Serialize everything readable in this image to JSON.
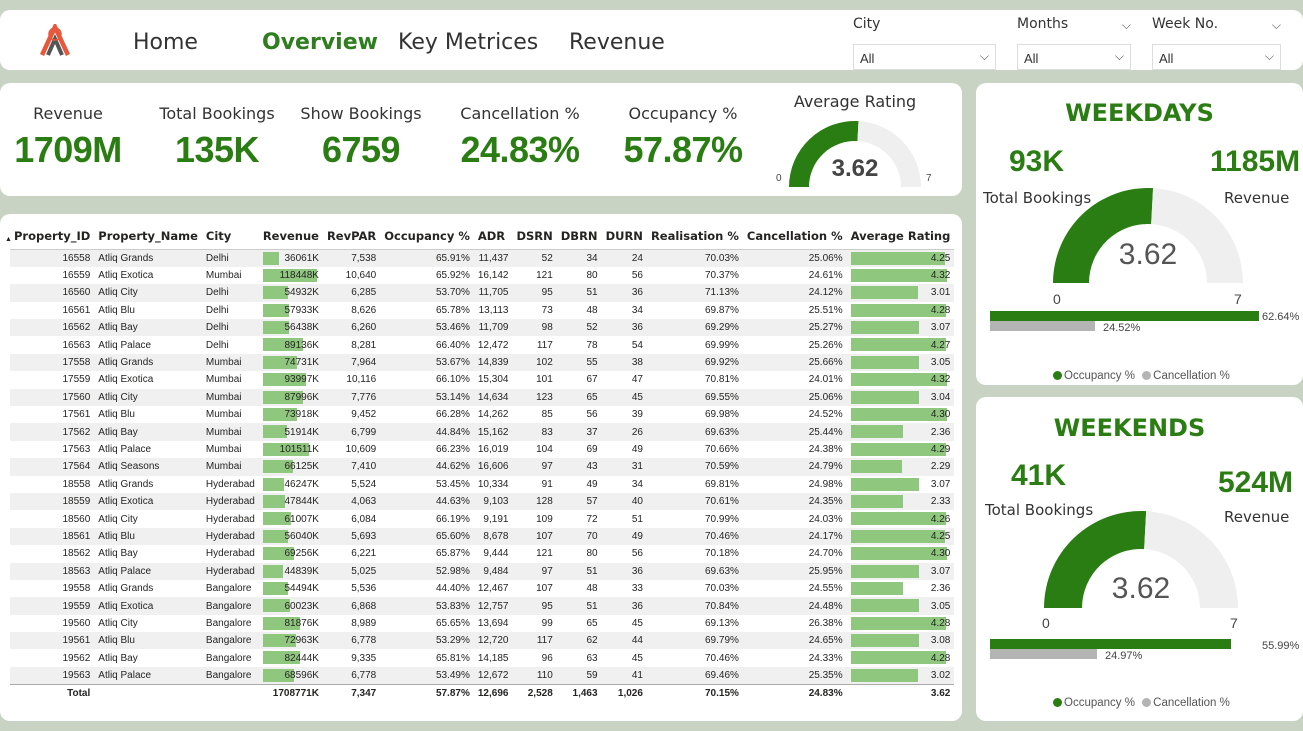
{
  "nav": {
    "items": [
      "Home",
      "Overview",
      "Key Metrices",
      "Revenue"
    ],
    "active": "Overview"
  },
  "filters": [
    {
      "label": "City",
      "value": "All"
    },
    {
      "label": "Months",
      "value": "All"
    },
    {
      "label": "Week No.",
      "value": "All"
    }
  ],
  "kpis": [
    {
      "label": "Revenue",
      "value": "1709M"
    },
    {
      "label": "Total Bookings",
      "value": "135K"
    },
    {
      "label": "Show Bookings",
      "value": "6759"
    },
    {
      "label": "Cancellation %",
      "value": "24.83%"
    },
    {
      "label": "Occupancy %",
      "value": "57.87%"
    }
  ],
  "rating_gauge": {
    "label": "Average Rating",
    "value": "3.62",
    "min": "0",
    "max": "7",
    "fraction": 0.517
  },
  "table": {
    "columns": [
      "Property_ID",
      "Property_Name",
      "City",
      "Revenue",
      "RevPAR",
      "Occupancy %",
      "ADR",
      "DSRN",
      "DBRN",
      "DURN",
      "Realisation %",
      "Cancellation %",
      "Average Rating"
    ],
    "revenue_max": 118448,
    "rating_max": 4.32,
    "rows": [
      [
        "16558",
        "Atliq Grands",
        "Delhi",
        "36061K",
        "7,538",
        "65.91%",
        "11,437",
        "52",
        "34",
        "24",
        "70.03%",
        "25.06%",
        "4.25"
      ],
      [
        "16559",
        "Atliq Exotica",
        "Mumbai",
        "118448K",
        "10,640",
        "65.92%",
        "16,142",
        "121",
        "80",
        "56",
        "70.37%",
        "24.61%",
        "4.32"
      ],
      [
        "16560",
        "Atliq City",
        "Delhi",
        "54932K",
        "6,285",
        "53.70%",
        "11,705",
        "95",
        "51",
        "36",
        "71.13%",
        "24.12%",
        "3.01"
      ],
      [
        "16561",
        "Atliq Blu",
        "Delhi",
        "57933K",
        "8,626",
        "65.78%",
        "13,113",
        "73",
        "48",
        "34",
        "69.87%",
        "25.51%",
        "4.28"
      ],
      [
        "16562",
        "Atliq Bay",
        "Delhi",
        "56438K",
        "6,260",
        "53.46%",
        "11,709",
        "98",
        "52",
        "36",
        "69.29%",
        "25.27%",
        "3.07"
      ],
      [
        "16563",
        "Atliq Palace",
        "Delhi",
        "89136K",
        "8,281",
        "66.40%",
        "12,472",
        "117",
        "78",
        "54",
        "69.99%",
        "25.26%",
        "4.27"
      ],
      [
        "17558",
        "Atliq Grands",
        "Mumbai",
        "74731K",
        "7,964",
        "53.67%",
        "14,839",
        "102",
        "55",
        "38",
        "69.92%",
        "25.66%",
        "3.05"
      ],
      [
        "17559",
        "Atliq Exotica",
        "Mumbai",
        "93997K",
        "10,116",
        "66.10%",
        "15,304",
        "101",
        "67",
        "47",
        "70.81%",
        "24.01%",
        "4.32"
      ],
      [
        "17560",
        "Atliq City",
        "Mumbai",
        "87996K",
        "7,776",
        "53.14%",
        "14,634",
        "123",
        "65",
        "45",
        "69.55%",
        "25.06%",
        "3.04"
      ],
      [
        "17561",
        "Atliq Blu",
        "Mumbai",
        "73918K",
        "9,452",
        "66.28%",
        "14,262",
        "85",
        "56",
        "39",
        "69.98%",
        "24.52%",
        "4.30"
      ],
      [
        "17562",
        "Atliq Bay",
        "Mumbai",
        "51914K",
        "6,799",
        "44.84%",
        "15,162",
        "83",
        "37",
        "26",
        "69.63%",
        "25.44%",
        "2.36"
      ],
      [
        "17563",
        "Atliq Palace",
        "Mumbai",
        "101511K",
        "10,609",
        "66.23%",
        "16,019",
        "104",
        "69",
        "49",
        "70.66%",
        "24.38%",
        "4.29"
      ],
      [
        "17564",
        "Atliq Seasons",
        "Mumbai",
        "66125K",
        "7,410",
        "44.62%",
        "16,606",
        "97",
        "43",
        "31",
        "70.59%",
        "24.79%",
        "2.29"
      ],
      [
        "18558",
        "Atliq Grands",
        "Hyderabad",
        "46247K",
        "5,524",
        "53.45%",
        "10,334",
        "91",
        "49",
        "34",
        "69.81%",
        "24.98%",
        "3.07"
      ],
      [
        "18559",
        "Atliq Exotica",
        "Hyderabad",
        "47844K",
        "4,063",
        "44.63%",
        "9,103",
        "128",
        "57",
        "40",
        "70.61%",
        "24.35%",
        "2.33"
      ],
      [
        "18560",
        "Atliq City",
        "Hyderabad",
        "61007K",
        "6,084",
        "66.19%",
        "9,191",
        "109",
        "72",
        "51",
        "70.99%",
        "24.03%",
        "4.26"
      ],
      [
        "18561",
        "Atliq Blu",
        "Hyderabad",
        "56040K",
        "5,693",
        "65.60%",
        "8,678",
        "107",
        "70",
        "49",
        "70.46%",
        "24.17%",
        "4.25"
      ],
      [
        "18562",
        "Atliq Bay",
        "Hyderabad",
        "69256K",
        "6,221",
        "65.87%",
        "9,444",
        "121",
        "80",
        "56",
        "70.18%",
        "24.70%",
        "4.30"
      ],
      [
        "18563",
        "Atliq Palace",
        "Hyderabad",
        "44839K",
        "5,025",
        "52.98%",
        "9,484",
        "97",
        "51",
        "36",
        "69.63%",
        "25.95%",
        "3.07"
      ],
      [
        "19558",
        "Atliq Grands",
        "Bangalore",
        "54494K",
        "5,536",
        "44.40%",
        "12,467",
        "107",
        "48",
        "33",
        "70.03%",
        "24.55%",
        "2.36"
      ],
      [
        "19559",
        "Atliq Exotica",
        "Bangalore",
        "60023K",
        "6,868",
        "53.83%",
        "12,757",
        "95",
        "51",
        "36",
        "70.84%",
        "24.48%",
        "3.05"
      ],
      [
        "19560",
        "Atliq City",
        "Bangalore",
        "81876K",
        "8,989",
        "65.65%",
        "13,694",
        "99",
        "65",
        "45",
        "69.13%",
        "26.38%",
        "4.28"
      ],
      [
        "19561",
        "Atliq Blu",
        "Bangalore",
        "72963K",
        "6,778",
        "53.29%",
        "12,720",
        "117",
        "62",
        "44",
        "69.79%",
        "24.65%",
        "3.08"
      ],
      [
        "19562",
        "Atliq Bay",
        "Bangalore",
        "82444K",
        "9,335",
        "65.81%",
        "14,185",
        "96",
        "63",
        "45",
        "70.46%",
        "24.33%",
        "4.28"
      ],
      [
        "19563",
        "Atliq Palace",
        "Bangalore",
        "68596K",
        "6,778",
        "53.49%",
        "12,672",
        "110",
        "59",
        "41",
        "69.46%",
        "25.35%",
        "3.02"
      ]
    ],
    "total": [
      "Total",
      "",
      "",
      "1708771K",
      "7,347",
      "57.87%",
      "12,696",
      "2,528",
      "1,463",
      "1,026",
      "70.15%",
      "24.83%",
      "3.62"
    ]
  },
  "weekdays": {
    "title": "WEEKDAYS",
    "bookings": "93K",
    "bookings_label": "Total Bookings",
    "revenue": "1185M",
    "revenue_label": "Revenue",
    "gauge": {
      "value": "3.62",
      "min": "0",
      "max": "7",
      "fraction": 0.517
    },
    "occupancy": {
      "label": "62.64%",
      "fraction": 0.6264
    },
    "cancellation": {
      "label": "24.52%",
      "fraction": 0.2452
    },
    "legend": [
      "Occupancy %",
      "Cancellation %"
    ]
  },
  "weekends": {
    "title": "WEEKENDS",
    "bookings": "41K",
    "bookings_label": "Total Bookings",
    "revenue": "524M",
    "revenue_label": "Revenue",
    "gauge": {
      "value": "3.62",
      "min": "0",
      "max": "7",
      "fraction": 0.517
    },
    "occupancy": {
      "label": "55.99%",
      "fraction": 0.5599
    },
    "cancellation": {
      "label": "24.97%",
      "fraction": 0.2497
    },
    "legend": [
      "Occupancy %",
      "Cancellation %"
    ]
  },
  "colors": {
    "accent": "#2a7d12",
    "bar": "#8fc77e",
    "grey": "#b4b4b4",
    "track": "#efefef"
  },
  "icons": {
    "logo": "atliq-logo-icon",
    "chevron": "chevron-down-icon"
  }
}
